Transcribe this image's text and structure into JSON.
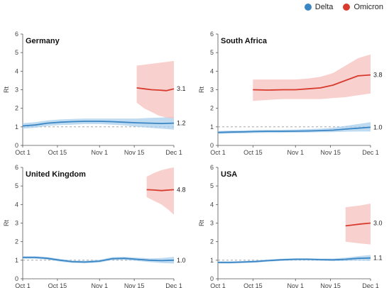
{
  "legend": {
    "delta_label": "Delta",
    "omicron_label": "Omicron",
    "delta_color": "#3a86c4",
    "omicron_color": "#d83a2e",
    "delta_band_color": "#a9cfee",
    "omicron_band_color": "#f6c4c0"
  },
  "chart_data": {
    "type": "line",
    "ylabel": "Rt",
    "x_ticks": [
      "Oct 1",
      "Oct 15",
      "Nov 1",
      "Nov 15",
      "Dec 1"
    ],
    "x_tick_days": [
      0,
      14,
      31,
      45,
      61
    ],
    "ylim": [
      0,
      6
    ],
    "y_ticks": [
      0,
      1,
      2,
      3,
      4,
      5,
      6
    ],
    "reference_line": 1,
    "legend_position": "top-right",
    "panels": [
      {
        "title": "Germany",
        "series": [
          {
            "name": "Delta",
            "x": [
              0,
              5,
              10,
              15,
              20,
              25,
              31,
              36,
              41,
              46,
              51,
              56,
              61
            ],
            "y": [
              1.05,
              1.1,
              1.2,
              1.25,
              1.28,
              1.3,
              1.3,
              1.28,
              1.25,
              1.22,
              1.2,
              1.18,
              1.2
            ],
            "lower": [
              0.9,
              0.95,
              1.05,
              1.1,
              1.12,
              1.15,
              1.15,
              1.12,
              1.08,
              1.0,
              0.95,
              0.9,
              0.85
            ],
            "upper": [
              1.2,
              1.25,
              1.35,
              1.4,
              1.42,
              1.45,
              1.45,
              1.45,
              1.45,
              1.45,
              1.48,
              1.5,
              1.55
            ],
            "end_label": "1.2"
          },
          {
            "name": "Omicron",
            "x": [
              46,
              49,
              52,
              55,
              58,
              61
            ],
            "y": [
              3.1,
              3.05,
              3.0,
              2.98,
              2.95,
              3.05
            ],
            "lower": [
              2.3,
              2.0,
              1.8,
              1.6,
              1.5,
              1.45
            ],
            "upper": [
              4.3,
              4.35,
              4.4,
              4.45,
              4.5,
              4.55
            ],
            "end_label": "3.1"
          }
        ]
      },
      {
        "title": "South Africa",
        "series": [
          {
            "name": "Delta",
            "x": [
              0,
              5,
              10,
              15,
              20,
              25,
              31,
              36,
              41,
              46,
              51,
              56,
              61
            ],
            "y": [
              0.7,
              0.72,
              0.73,
              0.75,
              0.76,
              0.76,
              0.77,
              0.78,
              0.8,
              0.82,
              0.88,
              0.93,
              0.98
            ],
            "lower": [
              0.62,
              0.64,
              0.65,
              0.67,
              0.68,
              0.68,
              0.69,
              0.7,
              0.71,
              0.72,
              0.74,
              0.75,
              0.75
            ],
            "upper": [
              0.78,
              0.8,
              0.81,
              0.83,
              0.84,
              0.84,
              0.86,
              0.88,
              0.9,
              0.95,
              1.05,
              1.15,
              1.25
            ],
            "end_label": "1.0"
          },
          {
            "name": "Omicron",
            "x": [
              14,
              20,
              26,
              31,
              36,
              41,
              46,
              51,
              56,
              61
            ],
            "y": [
              3.0,
              2.98,
              3.0,
              3.0,
              3.05,
              3.1,
              3.25,
              3.5,
              3.75,
              3.8
            ],
            "lower": [
              2.4,
              2.45,
              2.5,
              2.5,
              2.5,
              2.5,
              2.55,
              2.6,
              2.7,
              2.8
            ],
            "upper": [
              3.55,
              3.55,
              3.55,
              3.55,
              3.6,
              3.7,
              3.9,
              4.3,
              4.7,
              4.9
            ],
            "end_label": "3.8"
          }
        ]
      },
      {
        "title": "United Kingdom",
        "series": [
          {
            "name": "Delta",
            "x": [
              0,
              5,
              10,
              15,
              20,
              25,
              31,
              36,
              41,
              46,
              51,
              56,
              61
            ],
            "y": [
              1.15,
              1.15,
              1.1,
              1.0,
              0.92,
              0.9,
              0.95,
              1.08,
              1.1,
              1.05,
              1.0,
              0.98,
              1.0
            ],
            "lower": [
              1.08,
              1.08,
              1.03,
              0.93,
              0.85,
              0.83,
              0.88,
              1.0,
              1.02,
              0.96,
              0.9,
              0.85,
              0.82
            ],
            "upper": [
              1.22,
              1.22,
              1.17,
              1.07,
              0.99,
              0.97,
              1.02,
              1.16,
              1.18,
              1.14,
              1.1,
              1.12,
              1.18
            ],
            "end_label": "1.0"
          },
          {
            "name": "Omicron",
            "x": [
              50,
              53,
              56,
              59,
              61
            ],
            "y": [
              4.8,
              4.78,
              4.75,
              4.78,
              4.8
            ],
            "lower": [
              4.4,
              4.2,
              4.0,
              3.7,
              3.45
            ],
            "upper": [
              5.5,
              5.7,
              5.85,
              5.95,
              6.0
            ],
            "end_label": "4.8"
          }
        ]
      },
      {
        "title": "USA",
        "series": [
          {
            "name": "Delta",
            "x": [
              0,
              5,
              10,
              15,
              20,
              25,
              31,
              36,
              41,
              46,
              51,
              56,
              61
            ],
            "y": [
              0.88,
              0.88,
              0.9,
              0.93,
              0.98,
              1.02,
              1.05,
              1.05,
              1.03,
              1.02,
              1.05,
              1.1,
              1.12
            ],
            "lower": [
              0.82,
              0.82,
              0.84,
              0.87,
              0.92,
              0.96,
              0.99,
              0.99,
              0.97,
              0.95,
              0.96,
              0.98,
              0.97
            ],
            "upper": [
              0.94,
              0.94,
              0.96,
              0.99,
              1.04,
              1.08,
              1.11,
              1.11,
              1.09,
              1.09,
              1.14,
              1.22,
              1.28
            ],
            "end_label": "1.1"
          },
          {
            "name": "Omicron",
            "x": [
              51,
              54,
              57,
              61
            ],
            "y": [
              2.85,
              2.9,
              2.95,
              3.0
            ],
            "lower": [
              2.0,
              1.95,
              1.9,
              1.85
            ],
            "upper": [
              3.85,
              3.9,
              3.95,
              4.05
            ],
            "end_label": "3.0"
          }
        ]
      }
    ]
  }
}
